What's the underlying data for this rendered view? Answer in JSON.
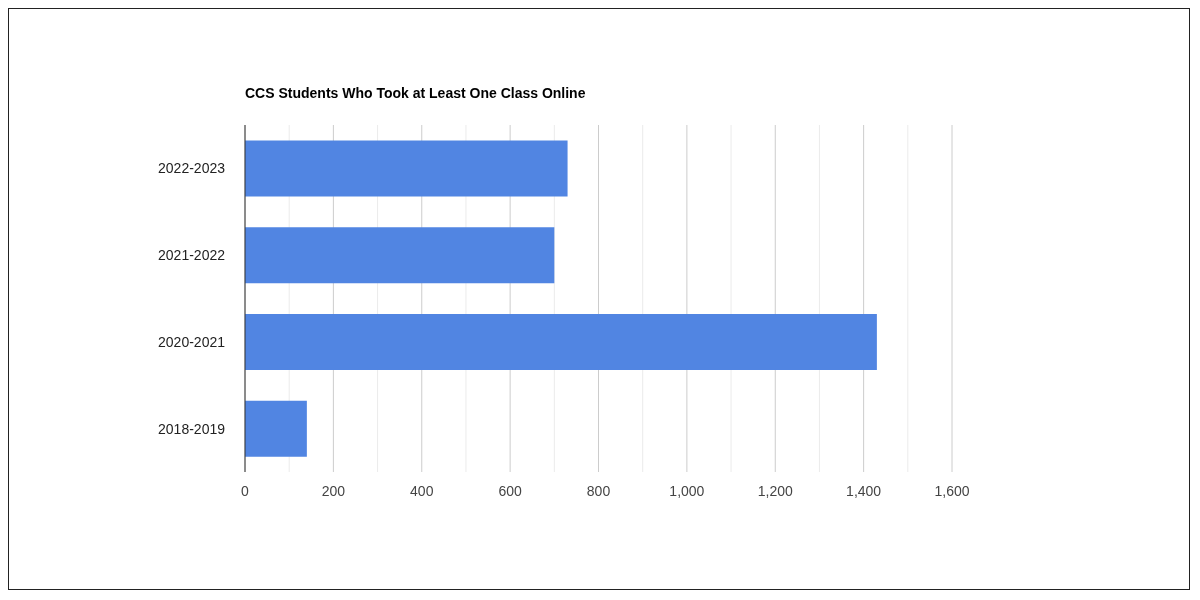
{
  "chart_data": {
    "type": "bar",
    "orientation": "horizontal",
    "title": "CCS Students Who Took at Least One Class Online",
    "categories": [
      "2022-2023",
      "2021-2022",
      "2020-2021",
      "2018-2019"
    ],
    "values": [
      730,
      700,
      1430,
      140
    ],
    "color": "#5185e2",
    "xlim": [
      0,
      1600
    ],
    "xticks": [
      0,
      {
        "value": 100,
        "label": null
      },
      200,
      {
        "value": 300,
        "label": null
      },
      400,
      {
        "value": 500,
        "label": null
      },
      600,
      {
        "value": 700,
        "label": null
      },
      800,
      {
        "value": 900,
        "label": null
      },
      {
        "value": 1000,
        "label": "1,000"
      },
      {
        "value": 1100,
        "label": null
      },
      {
        "value": 1200,
        "label": "1,200"
      },
      {
        "value": 1300,
        "label": null
      },
      {
        "value": 1400,
        "label": "1,400"
      },
      {
        "value": 1500,
        "label": null
      },
      {
        "value": 1600,
        "label": "1,600"
      }
    ],
    "grid": "x"
  }
}
